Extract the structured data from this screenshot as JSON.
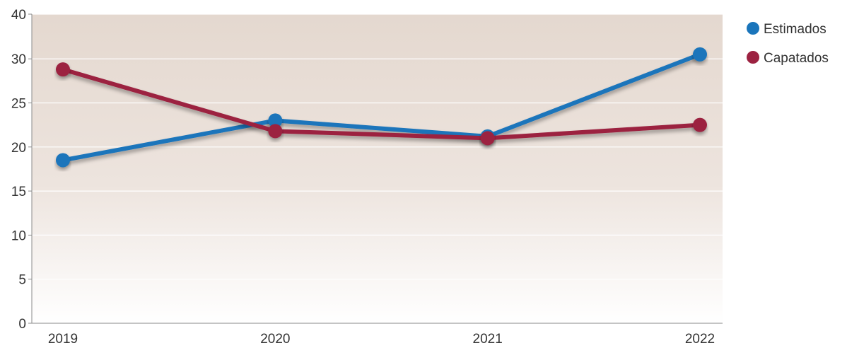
{
  "chart_data": {
    "type": "line",
    "title": "",
    "xlabel": "",
    "ylabel": "",
    "categories": [
      "2019",
      "2020",
      "2021",
      "2022"
    ],
    "y_ticks": [
      0,
      5,
      10,
      15,
      20,
      25,
      30,
      40
    ],
    "y_tick_labels": [
      "0",
      "5",
      "10",
      "15",
      "20",
      "25",
      "30",
      "40"
    ],
    "grid": true,
    "legend_position": "right",
    "series": [
      {
        "name": "Estimados",
        "color": "#1a75bb",
        "values": [
          18.5,
          23,
          21.2,
          31
        ]
      },
      {
        "name": "Capatados",
        "color": "#9c2241",
        "values": [
          28.8,
          21.8,
          21,
          22.5
        ]
      }
    ]
  }
}
